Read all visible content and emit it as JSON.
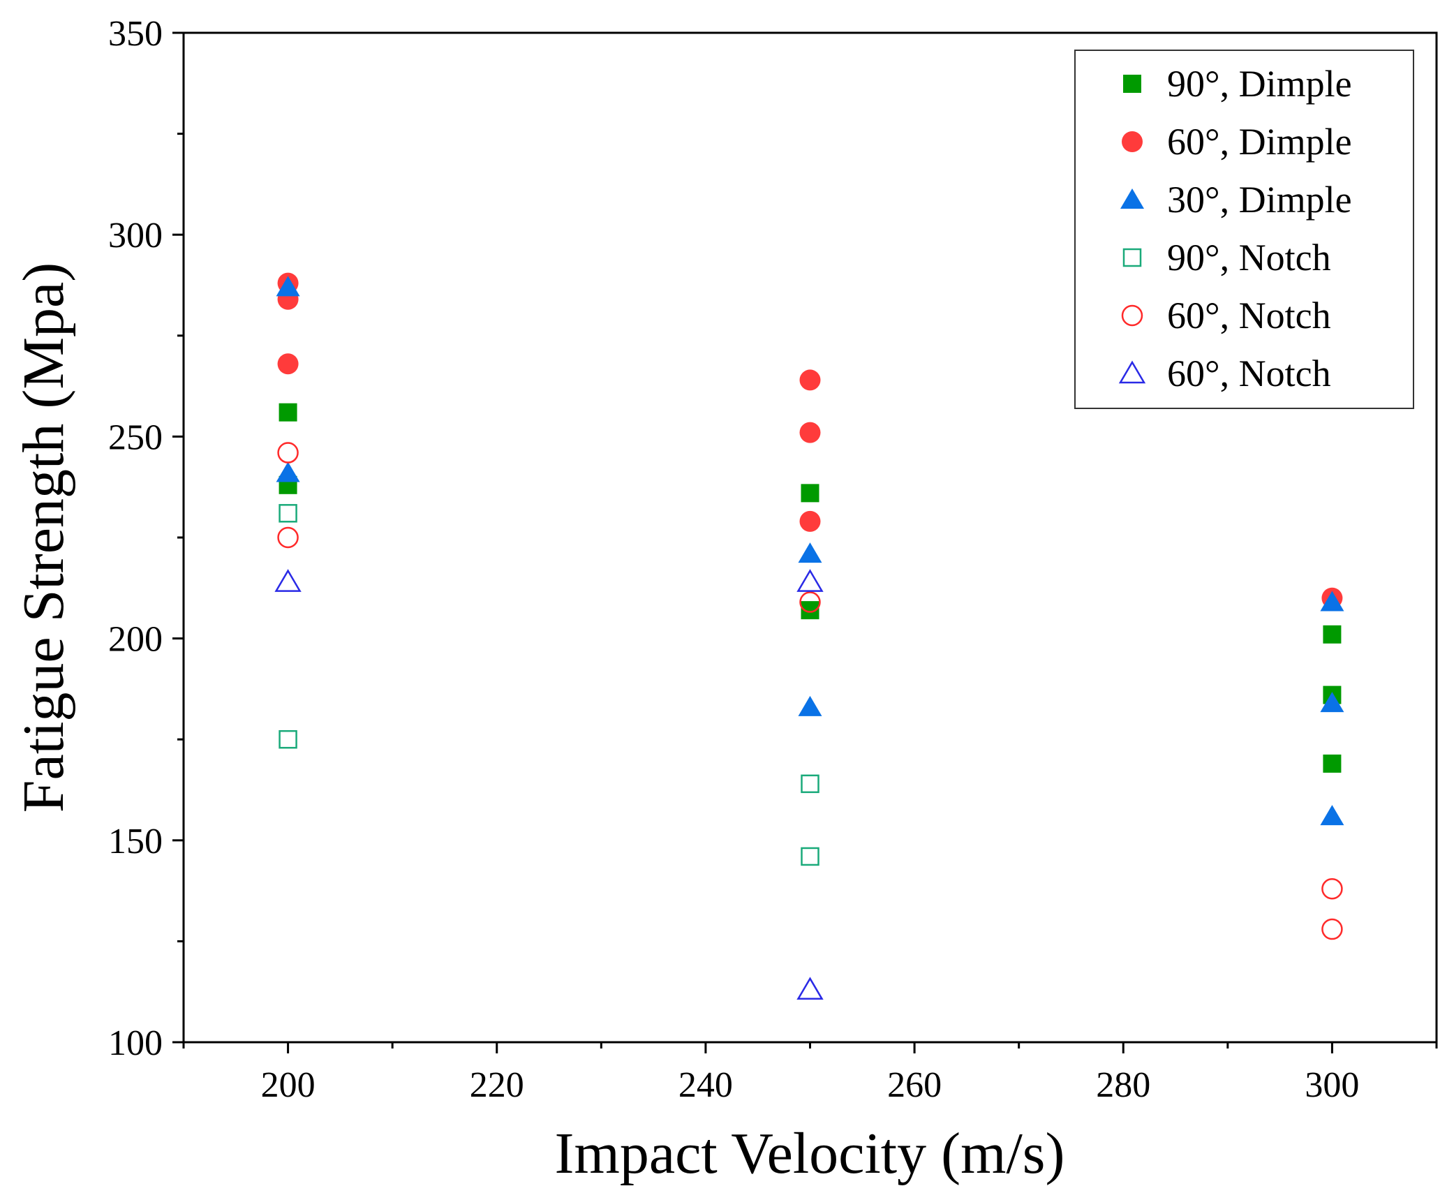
{
  "chart_data": {
    "type": "scatter",
    "title": "",
    "xlabel": "Impact Velocity (m/s)",
    "ylabel": "Fatigue Strength (Mpa)",
    "xlim": [
      190,
      310
    ],
    "ylim": [
      100,
      350
    ],
    "x_ticks": [
      200,
      220,
      240,
      260,
      280,
      300
    ],
    "y_ticks": [
      100,
      150,
      200,
      250,
      300,
      350
    ],
    "grid": false,
    "legend_position": "top-right",
    "series": [
      {
        "name": "90°, Dimple",
        "marker": "square",
        "filled": true,
        "color": "#009a00",
        "points": [
          [
            200,
            256
          ],
          [
            200,
            238
          ],
          [
            250,
            236
          ],
          [
            250,
            207
          ],
          [
            300,
            201
          ],
          [
            300,
            186
          ],
          [
            300,
            169
          ]
        ]
      },
      {
        "name": "60°, Dimple",
        "marker": "circle",
        "filled": true,
        "color": "#ff3b3b",
        "points": [
          [
            200,
            288
          ],
          [
            200,
            284
          ],
          [
            200,
            268
          ],
          [
            250,
            264
          ],
          [
            250,
            251
          ],
          [
            250,
            229
          ],
          [
            300,
            210
          ]
        ]
      },
      {
        "name": "30°, Dimple",
        "marker": "triangle",
        "filled": true,
        "color": "#0a72e6",
        "points": [
          [
            200,
            287
          ],
          [
            200,
            241
          ],
          [
            250,
            221
          ],
          [
            250,
            183
          ],
          [
            300,
            209
          ],
          [
            300,
            184
          ],
          [
            300,
            156
          ]
        ]
      },
      {
        "name": "90°, Notch",
        "marker": "square",
        "filled": false,
        "color": "#1aaa7a",
        "points": [
          [
            200,
            231
          ],
          [
            200,
            175
          ],
          [
            250,
            164
          ],
          [
            250,
            146
          ]
        ]
      },
      {
        "name": "60°, Notch",
        "marker": "circle",
        "filled": false,
        "color": "#ff2a2a",
        "points": [
          [
            200,
            246
          ],
          [
            200,
            225
          ],
          [
            250,
            209
          ],
          [
            300,
            138
          ],
          [
            300,
            128
          ]
        ]
      },
      {
        "name": "60°, Notch",
        "marker": "triangle",
        "filled": false,
        "color": "#2a2ae6",
        "points": [
          [
            200,
            214
          ],
          [
            250,
            214
          ],
          [
            250,
            113
          ]
        ]
      }
    ]
  }
}
